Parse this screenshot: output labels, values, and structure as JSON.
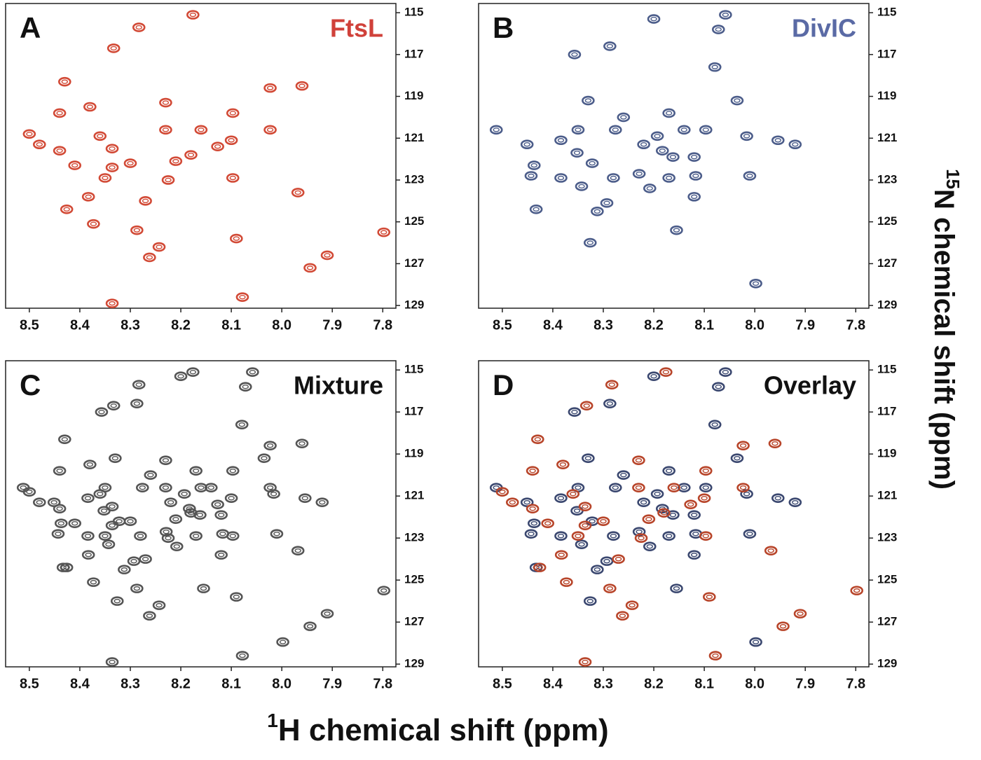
{
  "chart_data": [
    {
      "type": "scatter",
      "label": "A",
      "title": "FtsL",
      "title_color": "#d0413a",
      "xlim": [
        8.547,
        7.774
      ],
      "ylim": [
        114.56,
        129.13
      ],
      "xticks": [
        8.5,
        8.4,
        8.3,
        8.2,
        8.1,
        {
          "value": 8,
          "label": "8.0"
        },
        7.9,
        7.8
      ],
      "yticks": [
        115,
        117,
        119,
        121,
        123,
        125,
        127,
        129
      ],
      "series": [
        {
          "color": "#d24a36",
          "x": [
            8.283,
            8.176,
            8.333,
            8.43,
            8.023,
            7.96,
            8.44,
            8.38,
            8.23,
            8.097,
            8.5,
            8.48,
            8.44,
            8.36,
            8.23,
            8.16,
            8.023,
            8.336,
            8.1,
            8.127,
            8.18,
            8.21,
            8.3,
            8.41,
            8.336,
            8.35,
            8.225,
            8.097,
            8.383,
            8.426,
            8.27,
            7.968,
            8.373,
            8.287,
            8.09,
            7.798,
            8.243,
            8.262,
            7.91,
            7.944,
            8.078,
            8.336
          ],
          "values": [
            115.7,
            115.1,
            116.7,
            118.3,
            118.6,
            118.5,
            119.8,
            119.5,
            119.3,
            119.8,
            120.8,
            121.3,
            121.6,
            120.9,
            120.6,
            120.6,
            120.6,
            121.5,
            121.1,
            121.4,
            121.8,
            122.1,
            122.2,
            122.3,
            122.4,
            122.9,
            123.0,
            122.9,
            123.8,
            124.4,
            124.0,
            123.6,
            125.1,
            125.4,
            125.8,
            125.5,
            126.2,
            126.7,
            126.6,
            127.2,
            128.6,
            128.9
          ]
        }
      ]
    },
    {
      "type": "scatter",
      "label": "B",
      "title": "DivIC",
      "title_color": "#5a6aa5",
      "xlim": [
        8.547,
        7.774
      ],
      "ylim": [
        114.56,
        129.13
      ],
      "xticks": [
        8.5,
        8.4,
        8.3,
        8.2,
        8.1,
        {
          "value": 8,
          "label": "8.0"
        },
        7.9,
        7.8
      ],
      "yticks": [
        115,
        117,
        119,
        121,
        123,
        125,
        127,
        129
      ],
      "series": [
        {
          "color": "#4c5d8a",
          "x": [
            8.058,
            8.2,
            8.072,
            8.287,
            8.357,
            8.079,
            8.33,
            8.035,
            8.17,
            8.26,
            8.512,
            8.35,
            8.276,
            8.193,
            8.14,
            8.097,
            8.016,
            8.451,
            8.384,
            8.22,
            8.183,
            7.954,
            7.92,
            8.352,
            8.322,
            8.437,
            8.162,
            8.12,
            8.443,
            8.384,
            8.343,
            8.28,
            8.229,
            8.17,
            8.117,
            8.01,
            8.208,
            8.12,
            8.293,
            8.433,
            8.312,
            8.155,
            8.326,
            7.998
          ],
          "values": [
            115.1,
            115.3,
            115.8,
            116.6,
            117.0,
            117.6,
            119.2,
            119.2,
            119.8,
            120.0,
            120.6,
            120.6,
            120.6,
            120.9,
            120.6,
            120.6,
            120.9,
            121.3,
            121.1,
            121.3,
            121.6,
            121.1,
            121.3,
            121.7,
            122.2,
            122.3,
            121.9,
            121.9,
            122.8,
            122.9,
            123.3,
            122.9,
            122.7,
            122.9,
            122.8,
            122.8,
            123.4,
            123.8,
            124.1,
            124.4,
            124.5,
            125.4,
            126.0,
            127.95
          ]
        }
      ]
    },
    {
      "type": "scatter",
      "label": "C",
      "title": "Mixture",
      "title_color": "#111111",
      "xlim": [
        8.547,
        7.774
      ],
      "ylim": [
        114.56,
        129.13
      ],
      "xticks": [
        8.5,
        8.4,
        8.3,
        8.2,
        8.1,
        {
          "value": 8,
          "label": "8.0"
        },
        7.9,
        7.8
      ],
      "yticks": [
        115,
        117,
        119,
        121,
        123,
        125,
        127,
        129
      ],
      "series": [
        {
          "color": "#555555",
          "x": [
            8.283,
            8.176,
            8.333,
            8.43,
            8.023,
            7.96,
            8.44,
            8.38,
            8.23,
            8.097,
            8.5,
            8.48,
            8.44,
            8.36,
            8.23,
            8.16,
            8.023,
            8.336,
            8.1,
            8.127,
            8.18,
            8.21,
            8.3,
            8.41,
            8.336,
            8.35,
            8.225,
            8.097,
            8.383,
            8.426,
            8.27,
            7.968,
            8.373,
            8.287,
            8.09,
            7.798,
            8.243,
            8.262,
            7.91,
            7.944,
            8.078,
            8.336,
            8.058,
            8.2,
            8.072,
            8.287,
            8.357,
            8.079,
            8.33,
            8.035,
            8.17,
            8.26,
            8.512,
            8.35,
            8.276,
            8.193,
            8.14,
            8.016,
            8.451,
            8.384,
            8.22,
            8.183,
            7.954,
            7.92,
            8.352,
            8.322,
            8.437,
            8.162,
            8.12,
            8.443,
            8.384,
            8.343,
            8.28,
            8.229,
            8.17,
            8.117,
            8.01,
            8.208,
            8.12,
            8.293,
            8.433,
            8.312,
            8.155,
            8.326,
            7.998
          ],
          "values": [
            115.7,
            115.1,
            116.7,
            118.3,
            118.6,
            118.5,
            119.8,
            119.5,
            119.3,
            119.8,
            120.8,
            121.3,
            121.6,
            120.9,
            120.6,
            120.6,
            120.6,
            121.5,
            121.1,
            121.4,
            121.8,
            122.1,
            122.2,
            122.3,
            122.4,
            122.9,
            123.0,
            122.9,
            123.8,
            124.4,
            124.0,
            123.6,
            125.1,
            125.4,
            125.8,
            125.5,
            126.2,
            126.7,
            126.6,
            127.2,
            128.6,
            128.9,
            115.1,
            115.3,
            115.8,
            116.6,
            117.0,
            117.6,
            119.2,
            119.2,
            119.8,
            120.0,
            120.6,
            120.6,
            120.6,
            120.9,
            120.6,
            120.9,
            121.3,
            121.1,
            121.3,
            121.6,
            121.1,
            121.3,
            121.7,
            122.2,
            122.3,
            121.9,
            121.9,
            122.8,
            122.9,
            123.3,
            122.9,
            122.7,
            122.9,
            122.8,
            122.8,
            123.4,
            123.8,
            124.1,
            124.4,
            124.5,
            125.4,
            126.0,
            127.95
          ]
        }
      ]
    },
    {
      "type": "scatter",
      "label": "D",
      "title": "Overlay",
      "title_color": "#111111",
      "xlim": [
        8.547,
        7.774
      ],
      "ylim": [
        114.56,
        129.13
      ],
      "xticks": [
        8.5,
        8.4,
        8.3,
        8.2,
        8.1,
        {
          "value": 8,
          "label": "8.0"
        },
        7.9,
        7.8
      ],
      "yticks": [
        115,
        117,
        119,
        121,
        123,
        125,
        127,
        129
      ],
      "series": [
        {
          "color": "#3b4870",
          "x": [
            8.058,
            8.2,
            8.072,
            8.287,
            8.357,
            8.079,
            8.33,
            8.035,
            8.17,
            8.26,
            8.512,
            8.35,
            8.276,
            8.193,
            8.14,
            8.097,
            8.016,
            8.451,
            8.384,
            8.22,
            8.183,
            7.954,
            7.92,
            8.352,
            8.322,
            8.437,
            8.162,
            8.12,
            8.443,
            8.384,
            8.343,
            8.28,
            8.229,
            8.17,
            8.117,
            8.01,
            8.208,
            8.12,
            8.293,
            8.433,
            8.312,
            8.155,
            8.326,
            7.998
          ],
          "values": [
            115.1,
            115.3,
            115.8,
            116.6,
            117.0,
            117.6,
            119.2,
            119.2,
            119.8,
            120.0,
            120.6,
            120.6,
            120.6,
            120.9,
            120.6,
            120.6,
            120.9,
            121.3,
            121.1,
            121.3,
            121.6,
            121.1,
            121.3,
            121.7,
            122.2,
            122.3,
            121.9,
            121.9,
            122.8,
            122.9,
            123.3,
            122.9,
            122.7,
            122.9,
            122.8,
            122.8,
            123.4,
            123.8,
            124.1,
            124.4,
            124.5,
            125.4,
            126.0,
            127.95
          ]
        },
        {
          "color": "#b8452a",
          "x": [
            8.283,
            8.176,
            8.333,
            8.43,
            8.023,
            7.96,
            8.44,
            8.38,
            8.23,
            8.097,
            8.5,
            8.48,
            8.44,
            8.36,
            8.23,
            8.16,
            8.023,
            8.336,
            8.1,
            8.127,
            8.18,
            8.21,
            8.3,
            8.41,
            8.336,
            8.35,
            8.225,
            8.097,
            8.383,
            8.426,
            8.27,
            7.968,
            8.373,
            8.287,
            8.09,
            7.798,
            8.243,
            8.262,
            7.91,
            7.944,
            8.078,
            8.336
          ],
          "values": [
            115.7,
            115.1,
            116.7,
            118.3,
            118.6,
            118.5,
            119.8,
            119.5,
            119.3,
            119.8,
            120.8,
            121.3,
            121.6,
            120.9,
            120.6,
            120.6,
            120.6,
            121.5,
            121.1,
            121.4,
            121.8,
            122.1,
            122.2,
            122.3,
            122.4,
            122.9,
            123.0,
            122.9,
            123.8,
            124.4,
            124.0,
            123.6,
            125.1,
            125.4,
            125.8,
            125.5,
            126.2,
            126.7,
            126.6,
            127.2,
            128.6,
            128.9
          ]
        }
      ]
    }
  ],
  "x_label_sup": "1",
  "x_label": "H chemical shift (ppm)",
  "y_label_sup": "15",
  "y_label": "N chemical shift (ppm)"
}
